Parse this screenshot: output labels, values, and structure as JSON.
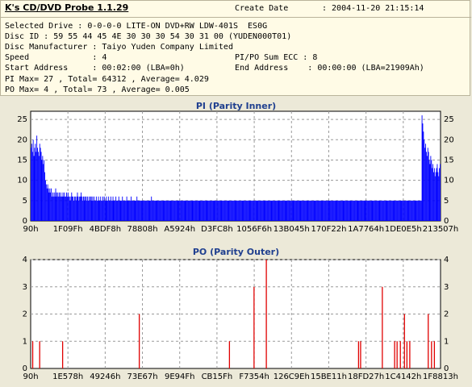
{
  "app": {
    "title": "K's CD/DVD Probe 1.1.29"
  },
  "info": {
    "create_date_label": "Create Date",
    "create_date_value": ": 2004-11-20 21:15:14",
    "selected_drive": "Selected Drive : 0-0-0-0 LITE-ON DVD+RW LDW-401S  ES0G",
    "disc_id": "Disc ID : 59 55 44 45 4E 30 30 30 54 30 31 00 (YUDEN000T01)",
    "disc_manufacturer": "Disc Manufacturer : Taiyo Yuden Company Limited",
    "speed": "Speed             : 4",
    "pipo_sum_ecc": "PI/PO Sum ECC : 8",
    "start_address": "Start Address     : 00:02:00 (LBA=0h)",
    "end_address": "End Address    : 00:00:00 (LBA=21909Ah)",
    "pi_summary": "PI Max= 27 , Total= 64312 , Average= 4.029",
    "po_summary": "PO Max= 4 , Total= 73 , Average= 0.005"
  },
  "colors": {
    "pi_bar": "#0000ff",
    "po_bar": "#e00000",
    "grid": "#9a9a9a",
    "title": "#1f3f8f"
  },
  "chart_data": [
    {
      "type": "bar",
      "title": "PI (Parity Inner)",
      "ylim": [
        0,
        27
      ],
      "yticks": [
        0,
        5,
        10,
        15,
        20,
        25
      ],
      "xticks": [
        "90h",
        "1F09Fh",
        "4BDF8h",
        "78808h",
        "A5924h",
        "D3FC8h",
        "1056F6h",
        "13B045h",
        "170F22h",
        "1A7764h",
        "1DE0E5h",
        "213507h"
      ],
      "grid": true,
      "series": [
        {
          "values": [
            18,
            19,
            17,
            20,
            16,
            18,
            19,
            17,
            21,
            18,
            17,
            16,
            19,
            18,
            17,
            15,
            16,
            14,
            15,
            12,
            10,
            9,
            8,
            9,
            8,
            7,
            8,
            7,
            8,
            6,
            7,
            6,
            7,
            6,
            8,
            7,
            6,
            7,
            6,
            7,
            6,
            7,
            6,
            6,
            7,
            6,
            7,
            6,
            6,
            7,
            6,
            7,
            6,
            6,
            5,
            6,
            7,
            6,
            6,
            5,
            6,
            6,
            5,
            6,
            7,
            6,
            5,
            6,
            6,
            7,
            6,
            5,
            6,
            6,
            5,
            6,
            6,
            5,
            6,
            5,
            6,
            5,
            6,
            6,
            5,
            6,
            5,
            6,
            5,
            5,
            6,
            5,
            5,
            6,
            5,
            5,
            6,
            5,
            5,
            6,
            5,
            6,
            5,
            5,
            6,
            5,
            5,
            6,
            5,
            5,
            6,
            5,
            5,
            6,
            5,
            5,
            5,
            6,
            5,
            5,
            5,
            6,
            5,
            5,
            5,
            5,
            6,
            5,
            5,
            5,
            5,
            5,
            6,
            5,
            5,
            5,
            5,
            5,
            6,
            5,
            5,
            5,
            5,
            5,
            5,
            5,
            6,
            5,
            5,
            5,
            5,
            5,
            5,
            5,
            5,
            5,
            5,
            5,
            5,
            5,
            5,
            5,
            5,
            5,
            5,
            5,
            6,
            5,
            5,
            5,
            5,
            5,
            5,
            5,
            5,
            5,
            5,
            5,
            5,
            5,
            5,
            5,
            5,
            5,
            5,
            5,
            5,
            5,
            5,
            5,
            5,
            5,
            5,
            5,
            5,
            5,
            5,
            5,
            5,
            5,
            5,
            5,
            5,
            5,
            5,
            5,
            5,
            5,
            5,
            5,
            5,
            5,
            5,
            5,
            5,
            5,
            5,
            5,
            5,
            5,
            5,
            5,
            5,
            5,
            5,
            5,
            5,
            5,
            5,
            5,
            5,
            5,
            5,
            5,
            5,
            5,
            5,
            5,
            5,
            5,
            5,
            5,
            5,
            5,
            5,
            5,
            5,
            5,
            5,
            5,
            5,
            5,
            5,
            5,
            5,
            5,
            5,
            5,
            5,
            5,
            5,
            5,
            5,
            5,
            5,
            5,
            5,
            5,
            5,
            5,
            5,
            5,
            5,
            5,
            5,
            5,
            5,
            5,
            5,
            5,
            5,
            5,
            5,
            5,
            5,
            5,
            5,
            5,
            5,
            5,
            5,
            5,
            5,
            5,
            5,
            5,
            5,
            5,
            5,
            5,
            5,
            5,
            5,
            5,
            5,
            5,
            5,
            5,
            5,
            5,
            5,
            5,
            5,
            5,
            5,
            5,
            5,
            5,
            5,
            5,
            5,
            5,
            5,
            5,
            5,
            5,
            5,
            5,
            5,
            5,
            5,
            5,
            5,
            5,
            5,
            5,
            5,
            5,
            5,
            5,
            5,
            5,
            5,
            5,
            5,
            5,
            5,
            5,
            5,
            5,
            5,
            5,
            5,
            5,
            5,
            5,
            5,
            5,
            5,
            5,
            5,
            5,
            5,
            5,
            5,
            5,
            5,
            5,
            5,
            5,
            5,
            5,
            5,
            5,
            5,
            5,
            5,
            5,
            5,
            5,
            5,
            5,
            5,
            5,
            5,
            5,
            5,
            5,
            5,
            5,
            5,
            5,
            5,
            5,
            5,
            5,
            5,
            5,
            5,
            5,
            5,
            5,
            5,
            5,
            5,
            5,
            5,
            5,
            5,
            5,
            5,
            5,
            5,
            5,
            5,
            5,
            5,
            5,
            5,
            5,
            5,
            5,
            5,
            5,
            5,
            5,
            5,
            5,
            5,
            5,
            5,
            5,
            5,
            5,
            5,
            5,
            5,
            5,
            5,
            5,
            5,
            5,
            5,
            5,
            5,
            5,
            5,
            5,
            5,
            5,
            5,
            5,
            5,
            5,
            5,
            5,
            5,
            5,
            5,
            5,
            5,
            5,
            5,
            5,
            5,
            5,
            5,
            5,
            5,
            5,
            5,
            5,
            5,
            5,
            5,
            5,
            5,
            5,
            5,
            5,
            5,
            5,
            5,
            5,
            5,
            5,
            5,
            5,
            5,
            5,
            5,
            5,
            5,
            5,
            5,
            5,
            5,
            5,
            5,
            5,
            5,
            5,
            5,
            5,
            5,
            5,
            5,
            5,
            5,
            5,
            5,
            5,
            5,
            5,
            5,
            5,
            5,
            5,
            5,
            5,
            5,
            5,
            5,
            5,
            5,
            5,
            5,
            5,
            5,
            5,
            5,
            5,
            5,
            5,
            5,
            5,
            5,
            5,
            5,
            26,
            24,
            22,
            20,
            18,
            19,
            17,
            16,
            18,
            17,
            15,
            14,
            16,
            15,
            13,
            14,
            12,
            13,
            11,
            12,
            13,
            14,
            12,
            11,
            13,
            14
          ]
        }
      ]
    },
    {
      "type": "bar",
      "title": "PO (Parity Outer)",
      "ylim": [
        0,
        4
      ],
      "yticks": [
        0,
        1,
        2,
        3,
        4
      ],
      "xticks": [
        "90h",
        "1E578h",
        "49246h",
        "73E67h",
        "9E94Fh",
        "CB15Fh",
        "F7354h",
        "126C9Eh",
        "15BE11h",
        "18FD27h",
        "1C4142h",
        "1F8813h"
      ],
      "grid": true,
      "points": [
        {
          "x": 0.005,
          "y": 1
        },
        {
          "x": 0.022,
          "y": 1
        },
        {
          "x": 0.078,
          "y": 1
        },
        {
          "x": 0.265,
          "y": 2
        },
        {
          "x": 0.485,
          "y": 1
        },
        {
          "x": 0.545,
          "y": 3
        },
        {
          "x": 0.575,
          "y": 4
        },
        {
          "x": 0.8,
          "y": 1
        },
        {
          "x": 0.805,
          "y": 1
        },
        {
          "x": 0.858,
          "y": 3
        },
        {
          "x": 0.888,
          "y": 1
        },
        {
          "x": 0.894,
          "y": 1
        },
        {
          "x": 0.902,
          "y": 1
        },
        {
          "x": 0.912,
          "y": 2
        },
        {
          "x": 0.918,
          "y": 1
        },
        {
          "x": 0.925,
          "y": 1
        },
        {
          "x": 0.97,
          "y": 2
        },
        {
          "x": 0.978,
          "y": 1
        },
        {
          "x": 0.985,
          "y": 1
        }
      ]
    }
  ]
}
